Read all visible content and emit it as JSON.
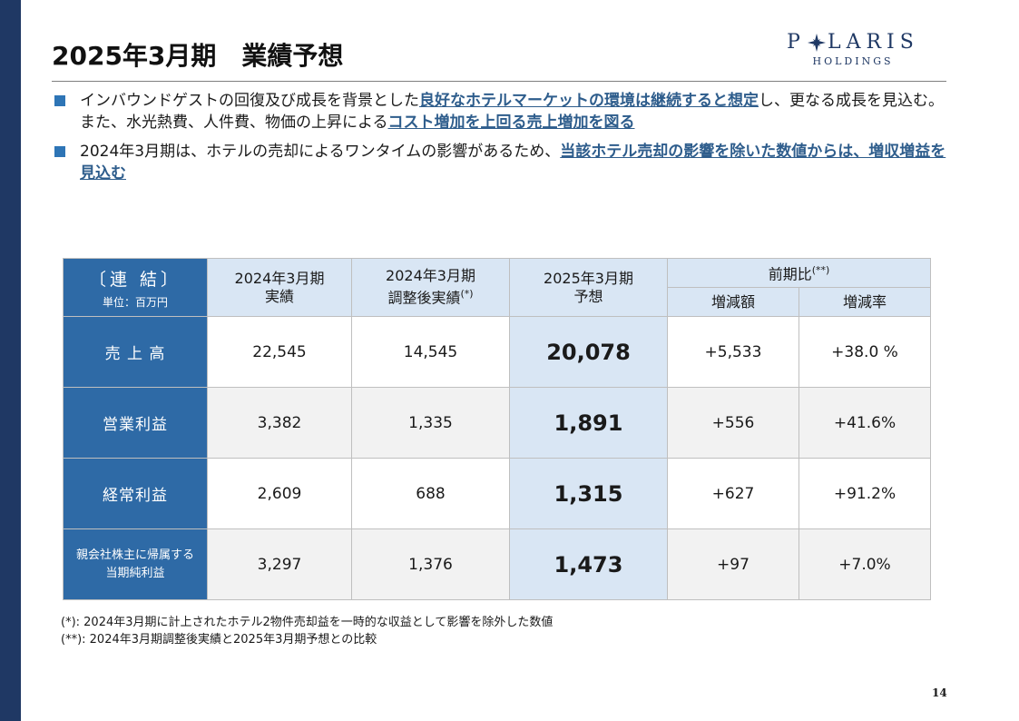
{
  "colors": {
    "sidebar": "#1f3864",
    "accent_blue": "#2e6aa6",
    "header_fill": "#d9e6f4",
    "highlight_text": "#2e5d8c"
  },
  "title": "2025年3月期　業績予想",
  "logo": {
    "left": "P",
    "icon": "star-icon",
    "right": "LARIS",
    "sub": "HOLDINGS"
  },
  "bullets": [
    {
      "text1": "インバウンドゲストの回復及び成長を背景とした",
      "hl1": "良好なホテルマーケットの環境は継続すると想定",
      "text2": "し、更なる成長を見込む。また、水光熱費、人件費、物価の上昇による",
      "hl2": "コスト増加を上回る売上増加を図る"
    },
    {
      "text1": "2024年3月期は、ホテルの売却によるワンタイムの影響があるため、",
      "hl1": "当該ホテル売却の影響を除いた数値からは、増収増益を見込む"
    }
  ],
  "table": {
    "corner": {
      "title": "〔連 結〕",
      "unit": "単位：百万円"
    },
    "headers": {
      "c1": {
        "line1": "2024年3月期",
        "line2": "実績"
      },
      "c2": {
        "line1": "2024年3月期",
        "line2": "調整後実績",
        "sup": "(*)"
      },
      "c3": {
        "line1": "2025年3月期",
        "line2": "予想"
      },
      "compare": {
        "label": "前期比",
        "sup": "(**)"
      },
      "diff": "増減額",
      "rate": "増減率"
    },
    "rows": [
      {
        "label": "売 上 高",
        "actual": "22,545",
        "adjusted": "14,545",
        "forecast": "20,078",
        "diff": "+5,533",
        "rate": "+38.0 %"
      },
      {
        "label": "営業利益",
        "actual": "3,382",
        "adjusted": "1,335",
        "forecast": "1,891",
        "diff": "+556",
        "rate": "+41.6%"
      },
      {
        "label": "経常利益",
        "actual": "2,609",
        "adjusted": "688",
        "forecast": "1,315",
        "diff": "+627",
        "rate": "+91.2%"
      },
      {
        "label_line1": "親会社株主に帰属する",
        "label_line2": "当期純利益",
        "actual": "3,297",
        "adjusted": "1,376",
        "forecast": "1,473",
        "diff": "+97",
        "rate": "+7.0%"
      }
    ]
  },
  "notes": [
    "(*): 2024年3月期に計上されたホテル2物件売却益を一時的な収益として影響を除外した数値",
    "(**): 2024年3月期調整後実績と2025年3月期予想との比較"
  ],
  "page_number": "14"
}
